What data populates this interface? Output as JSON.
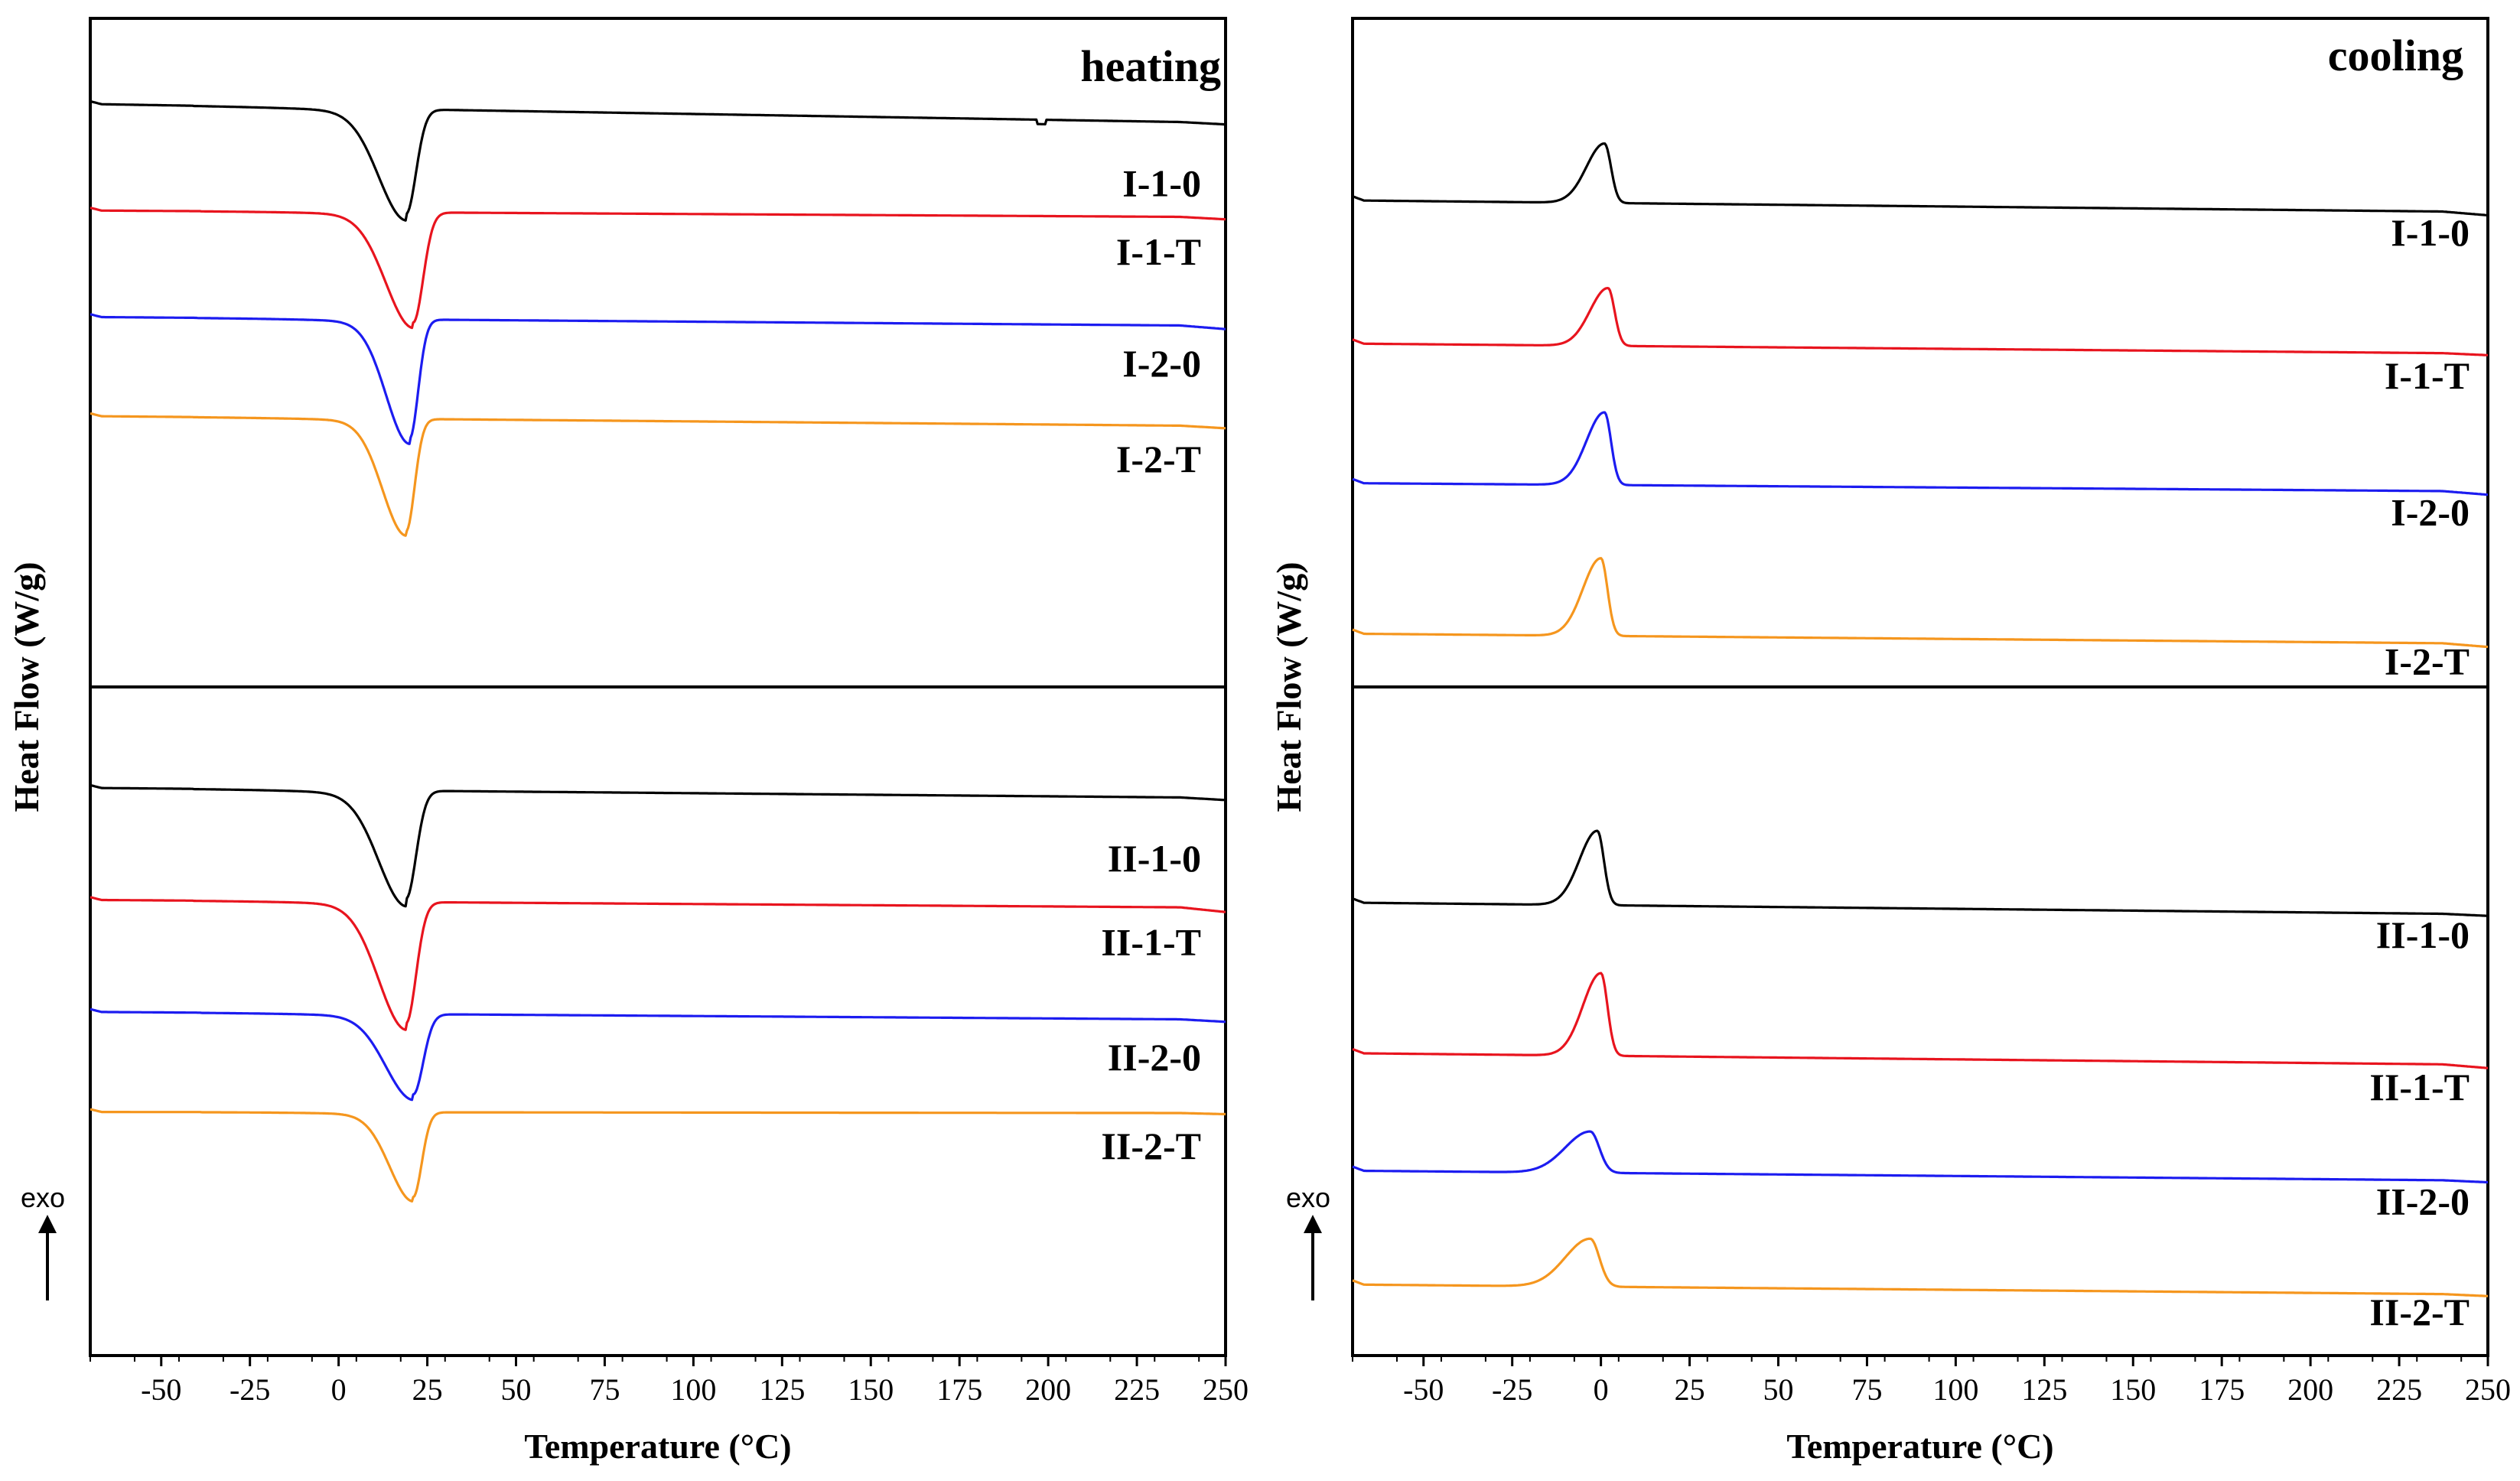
{
  "figure": {
    "y_axis_title": "Heat Flow (W/g)",
    "x_axis_title": "Temperature (°C)",
    "exo_label": "exo",
    "colors": {
      "black": "#000000",
      "red": "#e8141e",
      "blue": "#1c1cf0",
      "orange": "#f5961e"
    }
  },
  "chart_data": [
    {
      "type": "line",
      "title": "heating",
      "xlabel": "Temperature (°C)",
      "ylabel": "Heat Flow (W/g)",
      "xlim": [
        -70,
        250
      ],
      "xticks": [
        -50,
        -25,
        0,
        25,
        50,
        75,
        100,
        125,
        150,
        175,
        200,
        225,
        250
      ],
      "peak_type": "endotherm",
      "groups": [
        {
          "series": [
            {
              "name": "I-1-0",
              "color": "black",
              "offset": 0.0,
              "start": 0.0,
              "end": 0.34,
              "tail_hook": 0.03,
              "peak_x": 19,
              "peak_width": 3.5,
              "peak_depth": 1.9,
              "onset_lead": 0.12,
              "recovery": 1.0,
              "glitch_x": 198
            },
            {
              "name": "I-1-T",
              "color": "red",
              "offset": 1.16,
              "start": 0.0,
              "end": 0.12,
              "tail_hook": 0.04,
              "peak_x": 21,
              "peak_width": 3.5,
              "peak_depth": 2.0,
              "onset_lead": 0.1,
              "recovery": 1.0
            },
            {
              "name": "I-2-0",
              "color": "blue",
              "offset": 2.32,
              "start": 0.0,
              "end": 0.16,
              "tail_hook": 0.06,
              "peak_x": 20,
              "peak_width": 3.0,
              "peak_depth": 2.16,
              "onset_lead": 0.1,
              "recovery": 1.0
            },
            {
              "name": "I-2-T",
              "color": "orange",
              "offset": 3.4,
              "start": 0.0,
              "end": 0.18,
              "tail_hook": 0.04,
              "peak_x": 19,
              "peak_width": 3.0,
              "peak_depth": 2.04,
              "onset_lead": 0.08,
              "recovery": 1.0
            }
          ]
        },
        {
          "series": [
            {
              "name": "II-1-0",
              "color": "black",
              "offset": 0.0,
              "start": 0.0,
              "end": 0.18,
              "tail_hook": 0.04,
              "peak_x": 19,
              "peak_width": 3.5,
              "peak_depth": 1.96,
              "onset_lead": 0.14,
              "recovery": 1.0
            },
            {
              "name": "II-1-T",
              "color": "red",
              "offset": 1.22,
              "start": 0.0,
              "end": 0.14,
              "tail_hook": 0.08,
              "peak_x": 19,
              "peak_width": 3.5,
              "peak_depth": 2.2,
              "onset_lead": 0.12,
              "recovery": 1.0
            },
            {
              "name": "II-2-0",
              "color": "blue",
              "offset": 2.44,
              "start": 0.0,
              "end": 0.14,
              "tail_hook": 0.04,
              "peak_x": 21,
              "peak_width": 3.5,
              "peak_depth": 1.46,
              "onset_lead": 0.1,
              "recovery": 1.0
            },
            {
              "name": "II-2-T",
              "color": "orange",
              "offset": 3.53,
              "start": 0.0,
              "end": 0.02,
              "tail_hook": 0.02,
              "peak_x": 21,
              "peak_width": 3.0,
              "peak_depth": 1.54,
              "onset_lead": 0.08,
              "recovery": 1.0
            }
          ]
        }
      ]
    },
    {
      "type": "line",
      "title": "cooling",
      "xlabel": "Temperature (°C)",
      "ylabel": "Heat Flow (W/g)",
      "xlim": [
        -70,
        250
      ],
      "xticks": [
        -50,
        -25,
        0,
        25,
        50,
        75,
        100,
        125,
        150,
        175,
        200,
        225,
        250
      ],
      "peak_type": "exotherm",
      "groups": [
        {
          "series": [
            {
              "name": "I-1-0",
              "color": "black",
              "offset": 0.0,
              "start": 0.0,
              "end": 0.14,
              "tail_hook": 0.04,
              "peak_x": 1,
              "peak_width": 2.3,
              "peak_depth": 0.72,
              "onset_lead": 0.0,
              "recovery": 1.0
            },
            {
              "name": "I-1-T",
              "color": "red",
              "offset": 0.78,
              "start": 0.0,
              "end": 0.12,
              "tail_hook": 0.02,
              "peak_x": 2,
              "peak_width": 2.3,
              "peak_depth": 0.7,
              "onset_lead": 0.0,
              "recovery": 1.0
            },
            {
              "name": "I-2-0",
              "color": "blue",
              "offset": 1.54,
              "start": 0.0,
              "end": 0.1,
              "tail_hook": 0.04,
              "peak_x": 1,
              "peak_width": 2.3,
              "peak_depth": 0.88,
              "onset_lead": 0.0,
              "recovery": 1.0
            },
            {
              "name": "I-2-T",
              "color": "orange",
              "offset": 2.36,
              "start": 0.0,
              "end": 0.12,
              "tail_hook": 0.04,
              "peak_x": 0,
              "peak_width": 2.3,
              "peak_depth": 0.94,
              "onset_lead": 0.0,
              "recovery": 1.0
            }
          ]
        },
        {
          "series": [
            {
              "name": "II-1-0",
              "color": "black",
              "offset": 0.0,
              "start": 0.0,
              "end": 0.14,
              "tail_hook": 0.02,
              "peak_x": -1,
              "peak_width": 2.3,
              "peak_depth": 0.9,
              "onset_lead": 0.0,
              "recovery": 1.0
            },
            {
              "name": "II-1-T",
              "color": "red",
              "offset": 0.82,
              "start": 0.0,
              "end": 0.14,
              "tail_hook": 0.04,
              "peak_x": 0,
              "peak_width": 2.3,
              "peak_depth": 1.0,
              "onset_lead": 0.0,
              "recovery": 1.0
            },
            {
              "name": "II-2-0",
              "color": "blue",
              "offset": 1.46,
              "start": 0.0,
              "end": 0.12,
              "tail_hook": 0.02,
              "peak_x": -3,
              "peak_width": 3.2,
              "peak_depth": 0.5,
              "onset_lead": 0.0,
              "recovery": 1.0
            },
            {
              "name": "II-2-T",
              "color": "orange",
              "offset": 2.08,
              "start": 0.0,
              "end": 0.12,
              "tail_hook": 0.02,
              "peak_x": -3,
              "peak_width": 3.2,
              "peak_depth": 0.58,
              "onset_lead": 0.0,
              "recovery": 1.0
            }
          ]
        }
      ]
    }
  ]
}
